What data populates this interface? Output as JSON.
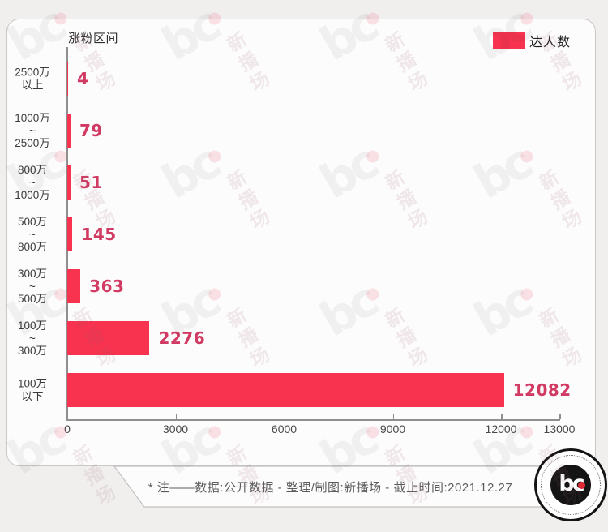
{
  "page": {
    "background_color": "#f1efee"
  },
  "chart": {
    "axis_title": "涨粉区间",
    "legend_label": "达人数",
    "bar_color": "#f73350",
    "value_label_color": "#d13a62"
  },
  "chart_data": {
    "type": "bar",
    "orientation": "horizontal",
    "title": "涨粉区间",
    "series_name": "达人数",
    "categories": [
      "2500万以上",
      "1000万~2500万",
      "800万~1000万",
      "500万~800万",
      "300万~500万",
      "100万~300万",
      "100万以下"
    ],
    "category_lines": [
      [
        "2500万",
        "以上"
      ],
      [
        "1000万",
        "~",
        "2500万"
      ],
      [
        "800万",
        "~",
        "1000万"
      ],
      [
        "500万",
        "~",
        "800万"
      ],
      [
        "300万",
        "~",
        "500万"
      ],
      [
        "100万",
        "~",
        "300万"
      ],
      [
        "100万",
        "以下"
      ]
    ],
    "values": [
      4,
      79,
      51,
      145,
      363,
      2276,
      12082
    ],
    "x_ticks": [
      "0",
      "3000",
      "6000",
      "9000",
      "12000",
      "13000"
    ],
    "xlim": [
      0,
      13000
    ],
    "grid": false,
    "legend_position": "top-right",
    "value_labels_shown": true
  },
  "footer": {
    "note": "* 注——数据:公开数据  -  整理/制图:新播场  -  截止时间:2021.12.27"
  },
  "brand": {
    "logo_text": "bc",
    "watermark_text": "新播场"
  }
}
